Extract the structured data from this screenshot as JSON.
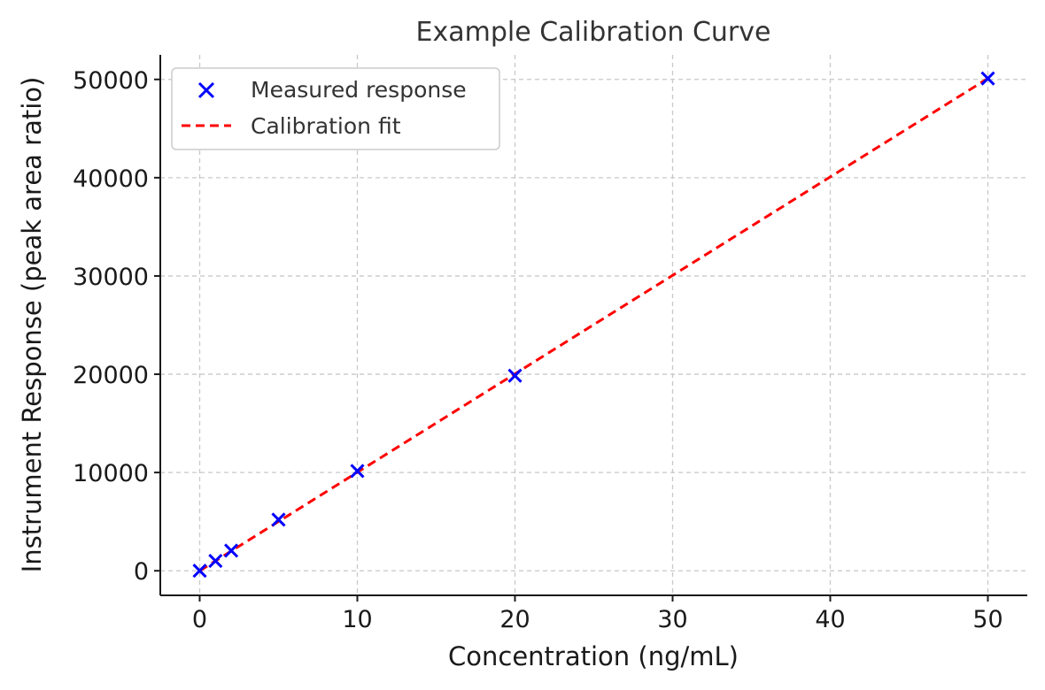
{
  "chart_data": {
    "type": "scatter",
    "title": "Example Calibration Curve",
    "xlabel": "Concentration (ng/mL)",
    "ylabel": "Instrument Response (peak area ratio)",
    "xlim": [
      -2.5,
      52.5
    ],
    "ylim": [
      -2500,
      52500
    ],
    "xticks": [
      0,
      10,
      20,
      30,
      40,
      50
    ],
    "yticks": [
      0,
      10000,
      20000,
      30000,
      40000,
      50000
    ],
    "grid": true,
    "legend_position": "top-left",
    "series": [
      {
        "name": "Measured response",
        "kind": "scatter",
        "marker": "x",
        "color": "#0000ff",
        "x": [
          0,
          1,
          2,
          5,
          10,
          20,
          50
        ],
        "y": [
          0,
          1000,
          2050,
          5200,
          10150,
          19850,
          50100
        ]
      },
      {
        "name": "Calibration fit",
        "kind": "line",
        "style": "dashed",
        "color": "#ff0000",
        "x": [
          0,
          50
        ],
        "y": [
          0,
          50100
        ]
      }
    ]
  }
}
